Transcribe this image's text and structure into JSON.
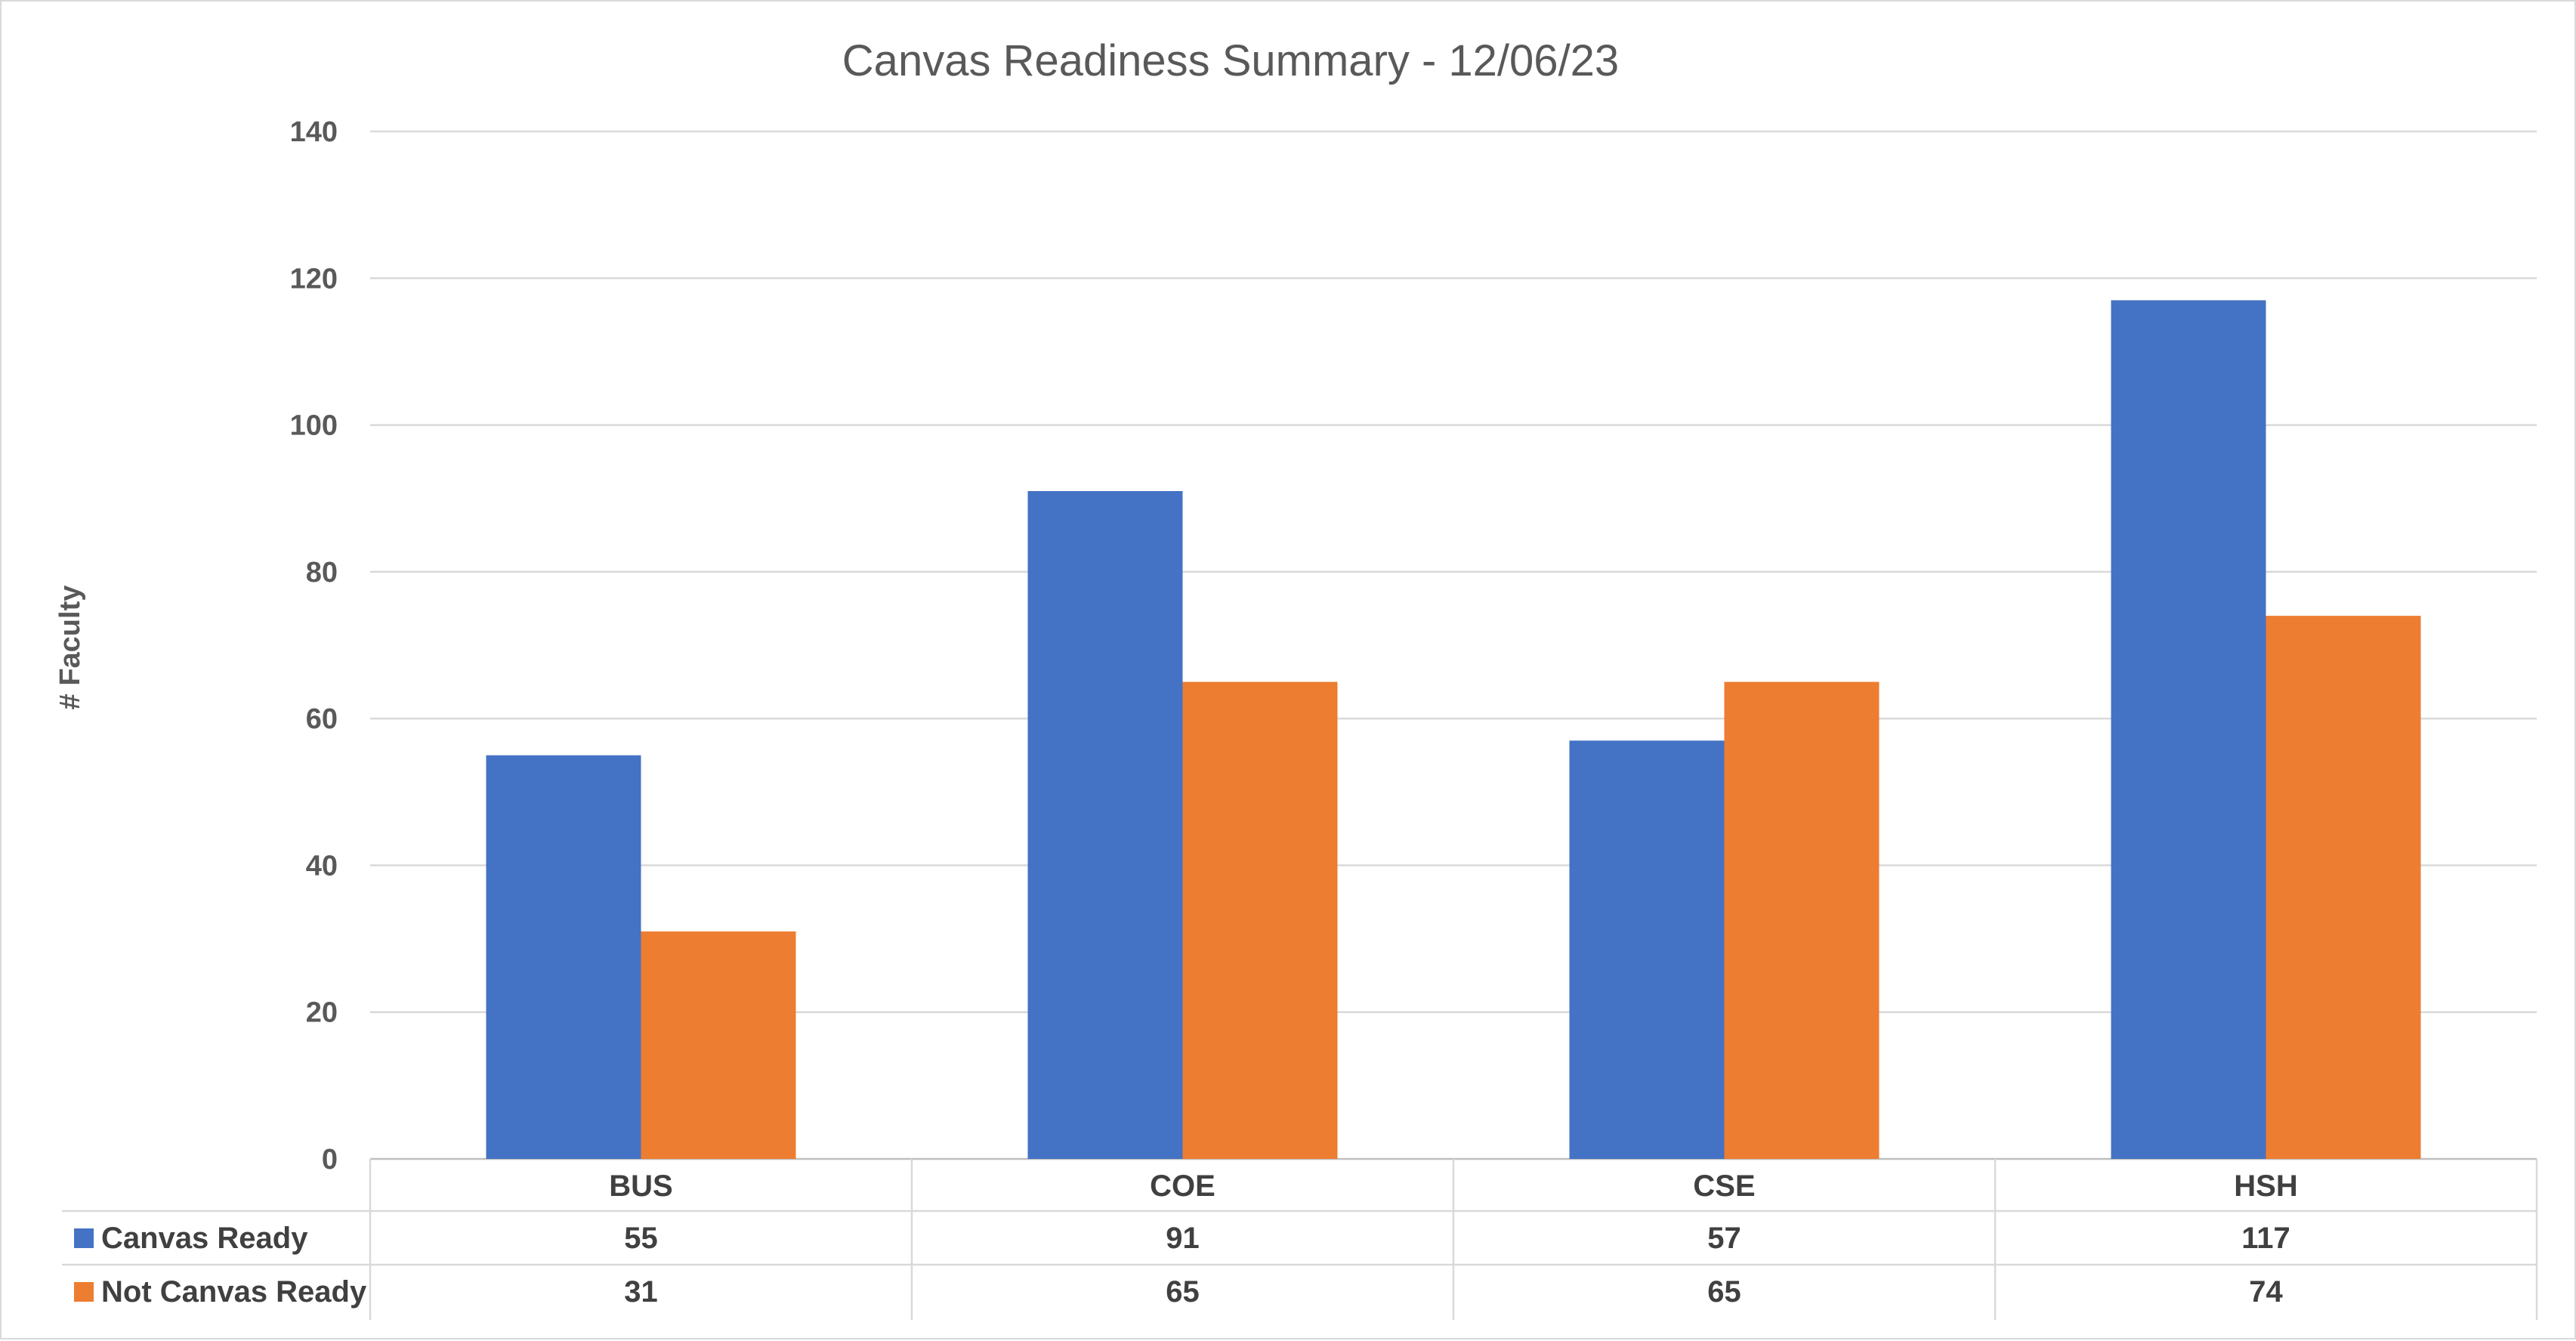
{
  "chart_data": {
    "type": "bar",
    "title": "Canvas Readiness Summary  - 12/06/23",
    "xlabel": "",
    "ylabel": "# Faculty",
    "categories": [
      "BUS",
      "COE",
      "CSE",
      "HSH"
    ],
    "ylim": [
      0,
      140
    ],
    "yticks": [
      0,
      20,
      40,
      60,
      80,
      100,
      120,
      140
    ],
    "grid": true,
    "legend": "data-table",
    "series": [
      {
        "name": "Canvas Ready",
        "color": "#4472C4",
        "values": [
          55,
          91,
          57,
          117
        ]
      },
      {
        "name": "Not Canvas Ready",
        "color": "#ED7D31",
        "values": [
          31,
          65,
          65,
          74
        ]
      }
    ]
  }
}
